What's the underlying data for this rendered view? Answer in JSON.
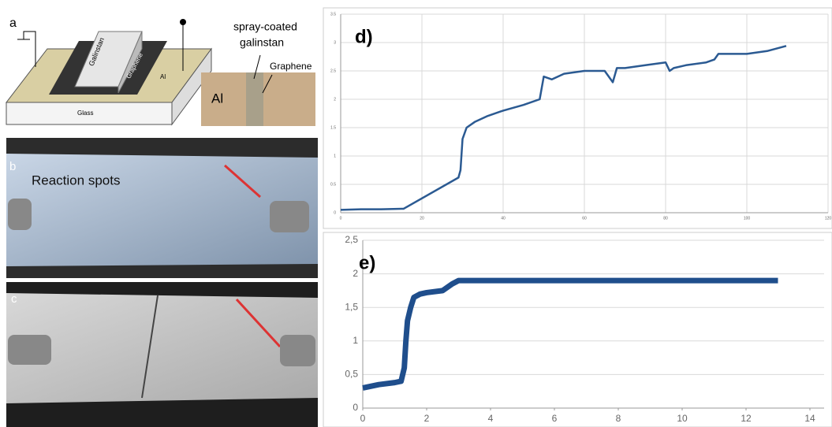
{
  "panels": {
    "a": {
      "label": "a",
      "labels": [
        "Galinstan",
        "Graphene",
        "Al",
        "Glass"
      ]
    },
    "inset": {
      "labels": [
        "spray-coated",
        "galinstan",
        "Graphene",
        "Al"
      ]
    },
    "b": {
      "label": "b",
      "annotation": "Reaction spots"
    },
    "c": {
      "label": "c"
    }
  },
  "chart_data": [
    {
      "type": "line",
      "title": "d)",
      "color": "#2b5a92",
      "x": [
        0,
        5,
        10,
        15.5,
        29,
        29.5,
        30,
        31,
        33,
        36,
        40,
        45,
        49,
        50,
        52,
        55,
        60,
        65,
        67,
        68,
        70,
        75,
        80,
        81,
        82,
        85,
        90,
        92,
        93,
        100,
        105,
        109.7
      ],
      "series": [
        {
          "color": "#2b5a92",
          "values": [
            0.05,
            0.06,
            0.06,
            0.07,
            0.62,
            0.75,
            1.3,
            1.5,
            1.6,
            1.7,
            1.8,
            1.9,
            2.0,
            2.4,
            2.35,
            2.45,
            2.5,
            2.5,
            2.3,
            2.55,
            2.55,
            2.6,
            2.65,
            2.5,
            2.55,
            2.6,
            2.65,
            2.7,
            2.8,
            2.8,
            2.85,
            2.94
          ]
        }
      ],
      "xlim": [
        0,
        120
      ],
      "xticks": [
        0,
        20,
        40,
        60,
        80,
        100,
        120
      ],
      "ylim": [
        0,
        3.5
      ],
      "yticks": [
        0,
        0.5,
        1,
        1.5,
        2,
        2.5,
        3,
        3.5
      ],
      "grid": true
    },
    {
      "type": "line",
      "title": "e)",
      "color": "#1f4e8c",
      "x": [
        0,
        0.5,
        1,
        1.2,
        1.3,
        1.35,
        1.4,
        1.5,
        1.6,
        1.8,
        2,
        2.5,
        2.8,
        3,
        4,
        6,
        8,
        10,
        12,
        13
      ],
      "series": [
        {
          "color": "#1f4e8c",
          "values": [
            0.3,
            0.35,
            0.38,
            0.4,
            0.6,
            1.0,
            1.3,
            1.5,
            1.65,
            1.7,
            1.72,
            1.75,
            1.85,
            1.9,
            1.9,
            1.9,
            1.9,
            1.9,
            1.9,
            1.9
          ]
        }
      ],
      "xlim": [
        0,
        14
      ],
      "xticks": [
        0,
        2,
        4,
        6,
        8,
        10,
        12,
        14
      ],
      "ylim": [
        0,
        2.5
      ],
      "yticks": [
        0,
        {
          "value": 0.5,
          "label": "0,5"
        },
        1,
        {
          "value": 1.5,
          "label": "1,5"
        },
        2,
        {
          "value": 2.5,
          "label": "2,5"
        }
      ],
      "grid": true
    }
  ]
}
